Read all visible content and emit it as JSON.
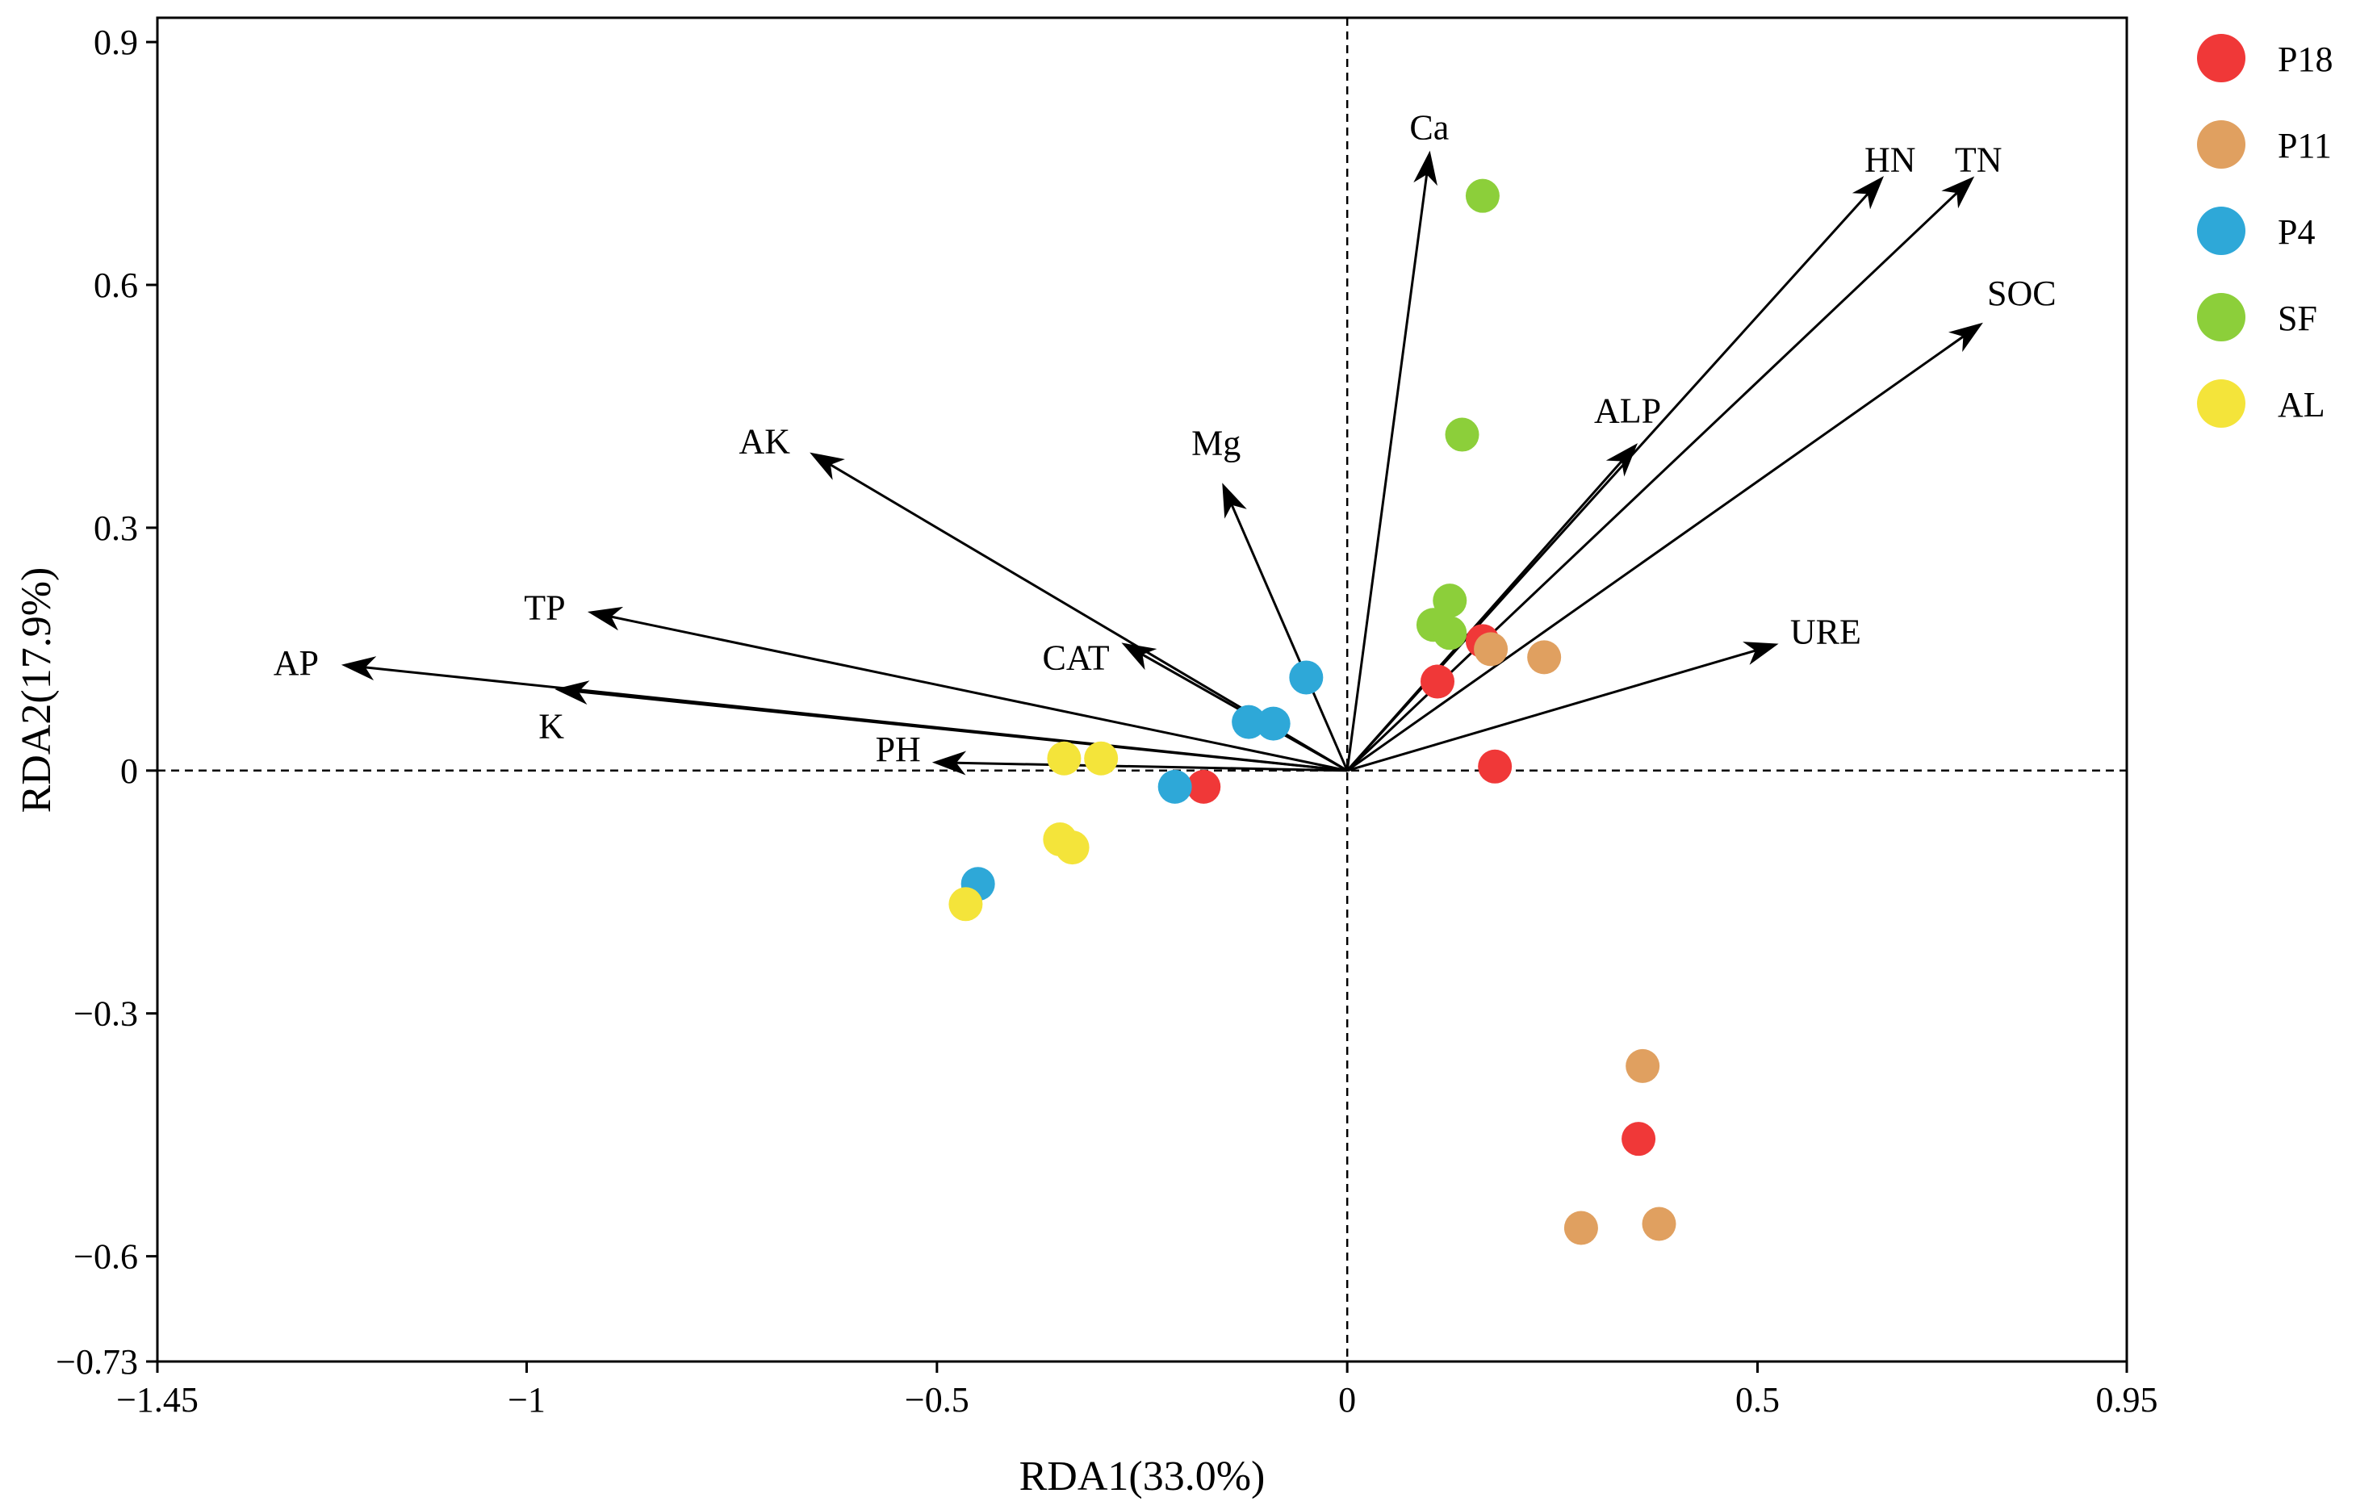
{
  "chart_data": {
    "type": "scatter",
    "title": "",
    "xlabel": "RDA1(33.0%)",
    "ylabel": "RDA2(17.9%)",
    "xlim": [
      -1.45,
      0.95
    ],
    "ylim": [
      -0.73,
      0.93
    ],
    "xticks": [
      -1.45,
      -1,
      -0.5,
      0,
      0.5,
      0.95
    ],
    "xtick_labels": [
      "−1.45",
      "−1",
      "−0.5",
      "0",
      "0.5",
      "0.95"
    ],
    "yticks": [
      0.9,
      0.6,
      0.3,
      0,
      -0.3,
      -0.6,
      -0.73
    ],
    "ytick_labels": [
      "0.9",
      "0.6",
      "0.3",
      "0",
      "−0.3",
      "−0.6",
      "−0.73"
    ],
    "grid": false,
    "reference_lines": {
      "x": 0,
      "y": 0,
      "style": "dashed"
    },
    "legend_position": "right",
    "series": [
      {
        "name": "P18",
        "color": "#f03838",
        "points": [
          [
            -0.175,
            -0.02
          ],
          [
            0.11,
            0.11
          ],
          [
            0.165,
            0.16
          ],
          [
            0.18,
            0.005
          ],
          [
            0.355,
            -0.455
          ]
        ]
      },
      {
        "name": "P11",
        "color": "#e0a060",
        "points": [
          [
            0.175,
            0.15
          ],
          [
            0.24,
            0.14
          ],
          [
            0.36,
            -0.365
          ],
          [
            0.285,
            -0.565
          ],
          [
            0.38,
            -0.56
          ]
        ]
      },
      {
        "name": "P4",
        "color": "#2ea8d8",
        "points": [
          [
            -0.05,
            0.115
          ],
          [
            -0.12,
            0.06
          ],
          [
            -0.09,
            0.058
          ],
          [
            -0.21,
            -0.02
          ],
          [
            -0.45,
            -0.14
          ]
        ]
      },
      {
        "name": "SF",
        "color": "#8ccf3a",
        "points": [
          [
            0.165,
            0.71
          ],
          [
            0.14,
            0.415
          ],
          [
            0.125,
            0.21
          ],
          [
            0.105,
            0.18
          ],
          [
            0.125,
            0.17
          ]
        ]
      },
      {
        "name": "AL",
        "color": "#f4e43a",
        "points": [
          [
            -0.345,
            0.015
          ],
          [
            -0.3,
            0.015
          ],
          [
            -0.35,
            -0.085
          ],
          [
            -0.335,
            -0.095
          ],
          [
            -0.465,
            -0.165
          ]
        ]
      }
    ],
    "arrows": [
      {
        "label": "Ca",
        "x": 0.1,
        "y": 0.76
      },
      {
        "label": "HN",
        "x": 0.65,
        "y": 0.73
      },
      {
        "label": "TN",
        "x": 0.76,
        "y": 0.73
      },
      {
        "label": "SOC",
        "x": 0.77,
        "y": 0.55
      },
      {
        "label": "ALP",
        "x": 0.35,
        "y": 0.4
      },
      {
        "label": "URE",
        "x": 0.52,
        "y": 0.155
      },
      {
        "label": "Mg",
        "x": -0.15,
        "y": 0.35
      },
      {
        "label": "AK",
        "x": -0.65,
        "y": 0.39
      },
      {
        "label": "TP",
        "x": -0.92,
        "y": 0.195
      },
      {
        "label": "AP",
        "x": -1.22,
        "y": 0.13
      },
      {
        "label": "K",
        "x": -0.96,
        "y": 0.1
      },
      {
        "label": "CAT",
        "x": -0.27,
        "y": 0.155
      },
      {
        "label": "PH",
        "x": -0.5,
        "y": 0.01
      }
    ]
  }
}
